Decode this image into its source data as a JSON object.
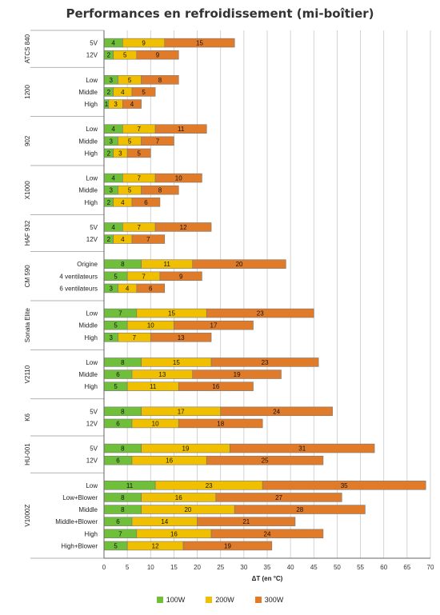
{
  "chart_data": {
    "type": "bar",
    "orientation": "horizontal",
    "stacked": true,
    "title": "Performances en refroidissement (mi-boîtier)",
    "xlabel": "ΔT (en °C)",
    "xlim": [
      0,
      70
    ],
    "xticks": [
      0,
      5,
      10,
      15,
      20,
      25,
      30,
      35,
      40,
      45,
      50,
      55,
      60,
      65,
      70
    ],
    "grid": true,
    "legend_position": "bottom",
    "series": [
      {
        "name": "100W",
        "color": "#6fbf3a"
      },
      {
        "name": "200W",
        "color": "#f0c000"
      },
      {
        "name": "300W",
        "color": "#e07b2a"
      }
    ],
    "groups": [
      {
        "name": "ATCS 840",
        "rows": [
          {
            "label": "5V",
            "values": [
              4,
              9,
              15
            ]
          },
          {
            "label": "12V",
            "values": [
              2,
              5,
              9
            ]
          }
        ]
      },
      {
        "name": "1200",
        "rows": [
          {
            "label": "Low",
            "values": [
              3,
              5,
              8
            ]
          },
          {
            "label": "Middle",
            "values": [
              2,
              4,
              5
            ]
          },
          {
            "label": "High",
            "values": [
              1,
              3,
              4
            ]
          }
        ]
      },
      {
        "name": "902",
        "rows": [
          {
            "label": "Low",
            "values": [
              4,
              7,
              11
            ]
          },
          {
            "label": "Middle",
            "values": [
              3,
              5,
              7
            ]
          },
          {
            "label": "High",
            "values": [
              2,
              3,
              5
            ]
          }
        ]
      },
      {
        "name": "X1000",
        "rows": [
          {
            "label": "Low",
            "values": [
              4,
              7,
              10
            ]
          },
          {
            "label": "Middle",
            "values": [
              3,
              5,
              8
            ]
          },
          {
            "label": "High",
            "values": [
              2,
              4,
              6
            ]
          }
        ]
      },
      {
        "name": "HAF 932",
        "rows": [
          {
            "label": "5V",
            "values": [
              4,
              7,
              12
            ]
          },
          {
            "label": "12V",
            "values": [
              2,
              4,
              7
            ]
          }
        ]
      },
      {
        "name": "CM 590",
        "rows": [
          {
            "label": "Origine",
            "values": [
              8,
              11,
              20
            ]
          },
          {
            "label": "4 ventilateurs",
            "values": [
              5,
              7,
              9
            ]
          },
          {
            "label": "6 ventilateurs",
            "values": [
              3,
              4,
              6
            ]
          }
        ]
      },
      {
        "name": "Sonata Elite",
        "rows": [
          {
            "label": "Low",
            "values": [
              7,
              15,
              23
            ]
          },
          {
            "label": "Middle",
            "values": [
              5,
              10,
              17
            ]
          },
          {
            "label": "High",
            "values": [
              3,
              7,
              13
            ]
          }
        ]
      },
      {
        "name": "V2110",
        "rows": [
          {
            "label": "Low",
            "values": [
              8,
              15,
              23
            ]
          },
          {
            "label": "Middle",
            "values": [
              6,
              13,
              19
            ]
          },
          {
            "label": "High",
            "values": [
              5,
              11,
              16
            ]
          }
        ]
      },
      {
        "name": "K6",
        "rows": [
          {
            "label": "5V",
            "values": [
              8,
              17,
              24
            ]
          },
          {
            "label": "12V",
            "values": [
              6,
              10,
              18
            ]
          }
        ]
      },
      {
        "name": "HU-001",
        "rows": [
          {
            "label": "5V",
            "values": [
              8,
              19,
              31
            ]
          },
          {
            "label": "12V",
            "values": [
              6,
              16,
              25
            ]
          }
        ]
      },
      {
        "name": "V1000Z",
        "rows": [
          {
            "label": "Low",
            "values": [
              11,
              23,
              35
            ]
          },
          {
            "label": "Low+Blower",
            "values": [
              8,
              16,
              27
            ]
          },
          {
            "label": "Middle",
            "values": [
              8,
              20,
              28
            ]
          },
          {
            "label": "Middle+Blower",
            "values": [
              6,
              14,
              21
            ]
          },
          {
            "label": "High",
            "values": [
              7,
              16,
              24
            ]
          },
          {
            "label": "High+Blower",
            "values": [
              5,
              12,
              19
            ]
          }
        ]
      }
    ]
  }
}
